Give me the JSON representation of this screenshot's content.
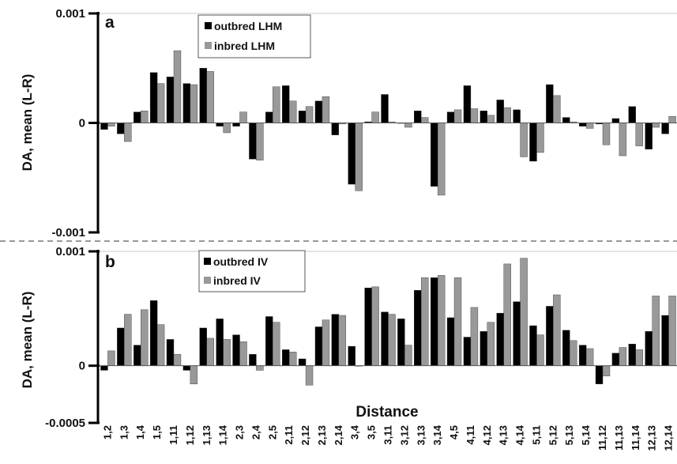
{
  "chart_data": {
    "type": "bar",
    "xlabel": "Distance",
    "categories": [
      "1,2",
      "1,3",
      "1,4",
      "1,5",
      "1,11",
      "1,12",
      "1,13",
      "1,14",
      "2,3",
      "2,4",
      "2,5",
      "2,11",
      "2,12",
      "2,13",
      "2,14",
      "3,4",
      "3,5",
      "3,11",
      "3,12",
      "3,13",
      "3,14",
      "4,5",
      "4,11",
      "4,12",
      "4,13",
      "4,14",
      "5,11",
      "5,12",
      "5,13",
      "5,14",
      "11,12",
      "11,13",
      "11,14",
      "12,13",
      "12,14"
    ],
    "panels": [
      {
        "panel_label": "a",
        "ylabel": "DA, mean (L-R)",
        "ylim": [
          -0.001,
          0.001
        ],
        "yticks": [
          -0.001,
          0,
          0.001
        ],
        "ytick_labels": [
          "-0.001",
          "0",
          "0.001"
        ],
        "legend_position": "top-center",
        "series": [
          {
            "name": "outbred LHM",
            "color": "#000000",
            "values": [
              -6e-05,
              -0.0001,
              0.0001,
              0.00046,
              0.00042,
              0.00036,
              0.0005,
              -3e-05,
              -3e-05,
              -0.00033,
              0.0001,
              0.00034,
              0.00011,
              0.0002,
              -0.00011,
              -0.00056,
              1e-05,
              0.00026,
              0.0,
              0.00011,
              -0.00058,
              0.0001,
              0.00034,
              0.00011,
              0.00021,
              0.00012,
              -0.00035,
              0.00035,
              5e-05,
              -3e-05,
              -1e-05,
              4e-05,
              0.00015,
              -0.00024,
              -0.0001
            ]
          },
          {
            "name": "inbred LHM",
            "color": "#999999",
            "values": [
              -3e-05,
              -0.00017,
              0.00011,
              0.00036,
              0.00066,
              0.00035,
              0.00047,
              -9e-05,
              0.0001,
              -0.00034,
              0.00033,
              0.0002,
              0.00015,
              0.00024,
              -1e-05,
              -0.00062,
              0.0001,
              1e-05,
              -4e-05,
              5e-05,
              -0.00066,
              0.00012,
              0.00013,
              7e-05,
              0.00014,
              -0.00031,
              -0.00027,
              0.00025,
              1e-05,
              -5e-05,
              -0.0002,
              -0.0003,
              -0.00021,
              -4e-05,
              6e-05
            ]
          }
        ]
      },
      {
        "panel_label": "b",
        "ylabel": "DA, mean (L-R)",
        "ylim": [
          -0.0005,
          0.001
        ],
        "yticks": [
          -0.0005,
          0,
          0.001
        ],
        "ytick_labels": [
          "-0.0005",
          "0",
          "0.001"
        ],
        "legend_position": "top-center",
        "series": [
          {
            "name": "outbred IV",
            "color": "#000000",
            "values": [
              -4e-05,
              0.00033,
              0.00018,
              0.00057,
              0.00023,
              -4e-05,
              0.00033,
              0.00041,
              0.00027,
              0.0001,
              0.00043,
              0.00014,
              6e-05,
              0.00034,
              0.00045,
              0.00017,
              0.00068,
              0.00047,
              0.00041,
              0.00066,
              0.00077,
              0.00042,
              0.00025,
              0.0003,
              0.00046,
              0.00056,
              0.00035,
              0.00052,
              0.00031,
              0.00018,
              -0.00016,
              0.00011,
              0.00019,
              0.0003,
              0.00044
            ]
          },
          {
            "name": "inbred IV",
            "color": "#999999",
            "values": [
              0.00013,
              0.00045,
              0.00049,
              0.00036,
              0.0001,
              -0.00016,
              0.00024,
              0.00023,
              0.00021,
              -4e-05,
              0.00038,
              0.00012,
              -0.00017,
              0.0004,
              0.00044,
              0.0,
              0.00069,
              0.00045,
              0.00018,
              0.00077,
              0.00079,
              0.00077,
              0.00051,
              0.00038,
              0.00089,
              0.00094,
              0.00027,
              0.00062,
              0.00022,
              0.00015,
              -9e-05,
              0.00016,
              0.00014,
              0.00061,
              0.00061
            ]
          }
        ]
      }
    ]
  }
}
